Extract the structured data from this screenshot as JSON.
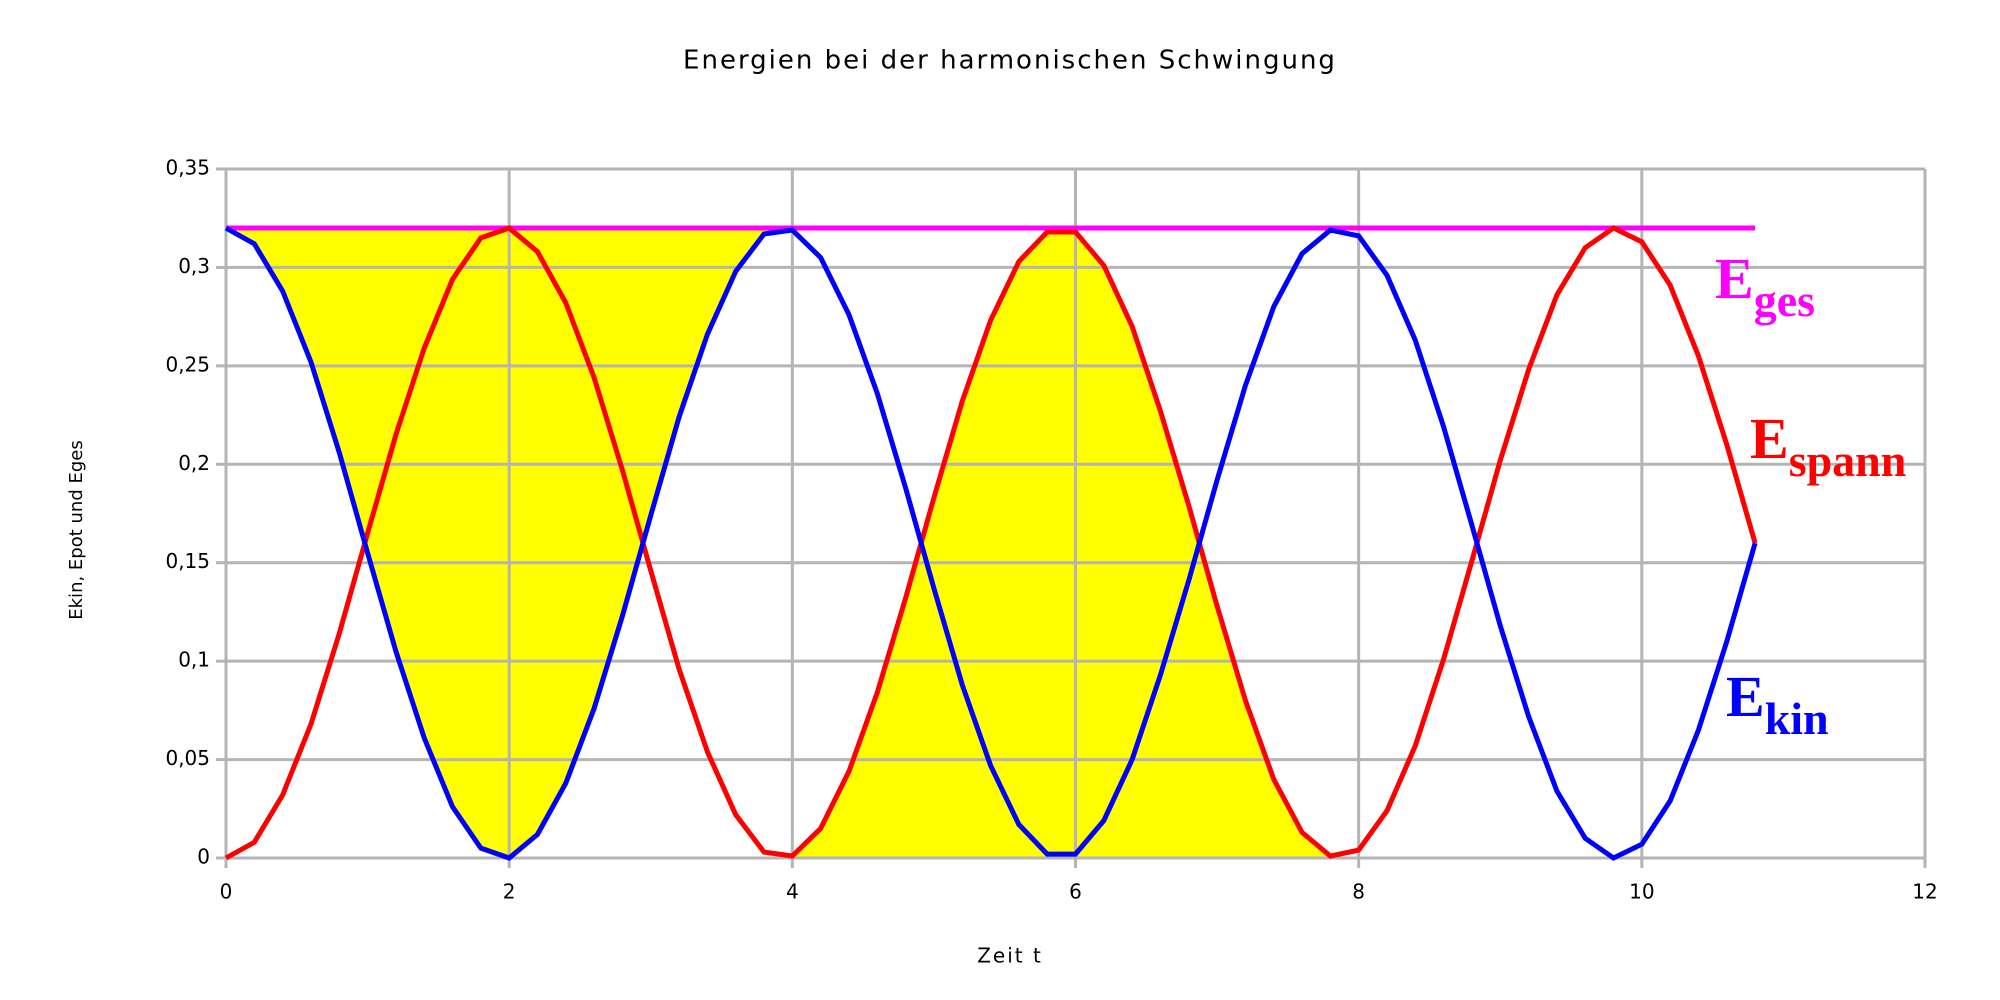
{
  "chart_data": {
    "type": "line",
    "title": "Energien bei der harmonischen Schwingung",
    "x_label": "Zeit t",
    "y_label": "Ekin, Epot und Eges",
    "xlim": [
      0,
      12
    ],
    "xticks": [
      0,
      2,
      4,
      6,
      8,
      10,
      12
    ],
    "ylim": [
      0,
      0.35
    ],
    "yticks": [
      0,
      {
        "value": 0.05,
        "label": "0,05"
      },
      {
        "value": 0.1,
        "label": "0,1"
      },
      {
        "value": 0.15,
        "label": "0,15"
      },
      {
        "value": 0.2,
        "label": "0,2"
      },
      {
        "value": 0.25,
        "label": "0,25"
      },
      {
        "value": 0.3,
        "label": "0,3"
      },
      {
        "value": 0.35,
        "label": "0,35"
      }
    ],
    "grid": true,
    "x": [
      0,
      0.2,
      0.4,
      0.6,
      0.8,
      1,
      1.2,
      1.4,
      1.6,
      1.8,
      2,
      2.2,
      2.4,
      2.6,
      2.8,
      3,
      3.2,
      3.4,
      3.6,
      3.8,
      4,
      4.2,
      4.4,
      4.6,
      4.8,
      5,
      5.2,
      5.4,
      5.6,
      5.8,
      6,
      6.2,
      6.4,
      6.6,
      6.8,
      7,
      7.2,
      7.4,
      7.6,
      7.8,
      8,
      8.2,
      8.4,
      8.6,
      8.8,
      9,
      9.2,
      9.4,
      9.6,
      9.8,
      10,
      10.2,
      10.4,
      10.6,
      10.8
    ],
    "series": [
      {
        "name": "Eges",
        "color": "#ff00ff",
        "values": [
          0.32,
          0.32,
          0.32,
          0.32,
          0.32,
          0.32,
          0.32,
          0.32,
          0.32,
          0.32,
          0.32,
          0.32,
          0.32,
          0.32,
          0.32,
          0.32,
          0.32,
          0.32,
          0.32,
          0.32,
          0.32,
          0.32,
          0.32,
          0.32,
          0.32,
          0.32,
          0.32,
          0.32,
          0.32,
          0.32,
          0.32,
          0.32,
          0.32,
          0.32,
          0.32,
          0.32,
          0.32,
          0.32,
          0.32,
          0.32,
          0.32,
          0.32,
          0.32,
          0.32,
          0.32,
          0.32,
          0.32,
          0.32,
          0.32,
          0.32,
          0.32,
          0.32,
          0.32,
          0.32,
          0.32
        ]
      },
      {
        "name": "Espann",
        "color": "#ff0000",
        "values": [
          0,
          0.008,
          0.032,
          0.068,
          0.114,
          0.165,
          0.215,
          0.259,
          0.294,
          0.315,
          0.32,
          0.308,
          0.282,
          0.244,
          0.197,
          0.146,
          0.096,
          0.054,
          0.022,
          0.003,
          0.001,
          0.015,
          0.044,
          0.084,
          0.132,
          0.183,
          0.232,
          0.273,
          0.303,
          0.318,
          0.318,
          0.301,
          0.27,
          0.227,
          0.179,
          0.128,
          0.08,
          0.04,
          0.013,
          0.001,
          0.004,
          0.024,
          0.057,
          0.101,
          0.151,
          0.202,
          0.248,
          0.286,
          0.31,
          0.32,
          0.313,
          0.291,
          0.255,
          0.21,
          0.16
        ]
      },
      {
        "name": "Ekin",
        "color": "#0000ff",
        "values": [
          0.32,
          0.312,
          0.288,
          0.252,
          0.206,
          0.155,
          0.105,
          0.061,
          0.026,
          0.005,
          0,
          0.012,
          0.038,
          0.076,
          0.123,
          0.174,
          0.224,
          0.266,
          0.298,
          0.317,
          0.319,
          0.305,
          0.276,
          0.236,
          0.188,
          0.137,
          0.088,
          0.047,
          0.017,
          0.002,
          0.002,
          0.019,
          0.05,
          0.093,
          0.141,
          0.192,
          0.24,
          0.28,
          0.307,
          0.319,
          0.316,
          0.296,
          0.263,
          0.219,
          0.169,
          0.118,
          0.072,
          0.034,
          0.01,
          0,
          0.007,
          0.029,
          0.065,
          0.11,
          0.16
        ]
      }
    ]
  }
}
